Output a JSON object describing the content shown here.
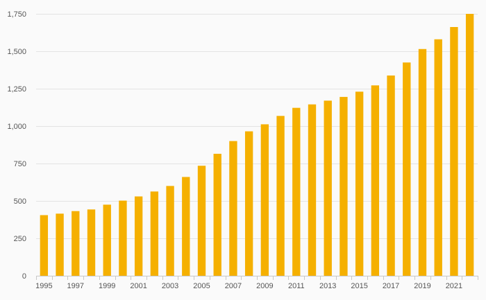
{
  "chart_data": {
    "type": "bar",
    "title": "",
    "xlabel": "",
    "ylabel": "",
    "categories": [
      "1995",
      "1996",
      "1997",
      "1998",
      "1999",
      "2000",
      "2001",
      "2002",
      "2003",
      "2004",
      "2005",
      "2006",
      "2007",
      "2008",
      "2009",
      "2010",
      "2011",
      "2012",
      "2013",
      "2014",
      "2015",
      "2016",
      "2017",
      "2018",
      "2019",
      "2020",
      "2021",
      "2022"
    ],
    "x_tick_labels": [
      "1995",
      "1997",
      "1999",
      "2001",
      "2003",
      "2005",
      "2007",
      "2009",
      "2011",
      "2013",
      "2015",
      "2017",
      "2019",
      "2021"
    ],
    "values": [
      405,
      415,
      432,
      443,
      475,
      502,
      530,
      563,
      600,
      660,
      735,
      815,
      900,
      965,
      1012,
      1068,
      1122,
      1145,
      1170,
      1195,
      1230,
      1272,
      1338,
      1425,
      1515,
      1580,
      1662,
      1750
    ],
    "ylim": [
      0,
      1750
    ],
    "y_ticks": [
      0,
      250,
      500,
      750,
      1000,
      1250,
      1500,
      1750
    ],
    "y_tick_labels": [
      "0",
      "250",
      "500",
      "750",
      "1,000",
      "1,250",
      "1,500",
      "1,750"
    ],
    "grid": true,
    "legend": "none",
    "bar_color": "#f5b000"
  }
}
